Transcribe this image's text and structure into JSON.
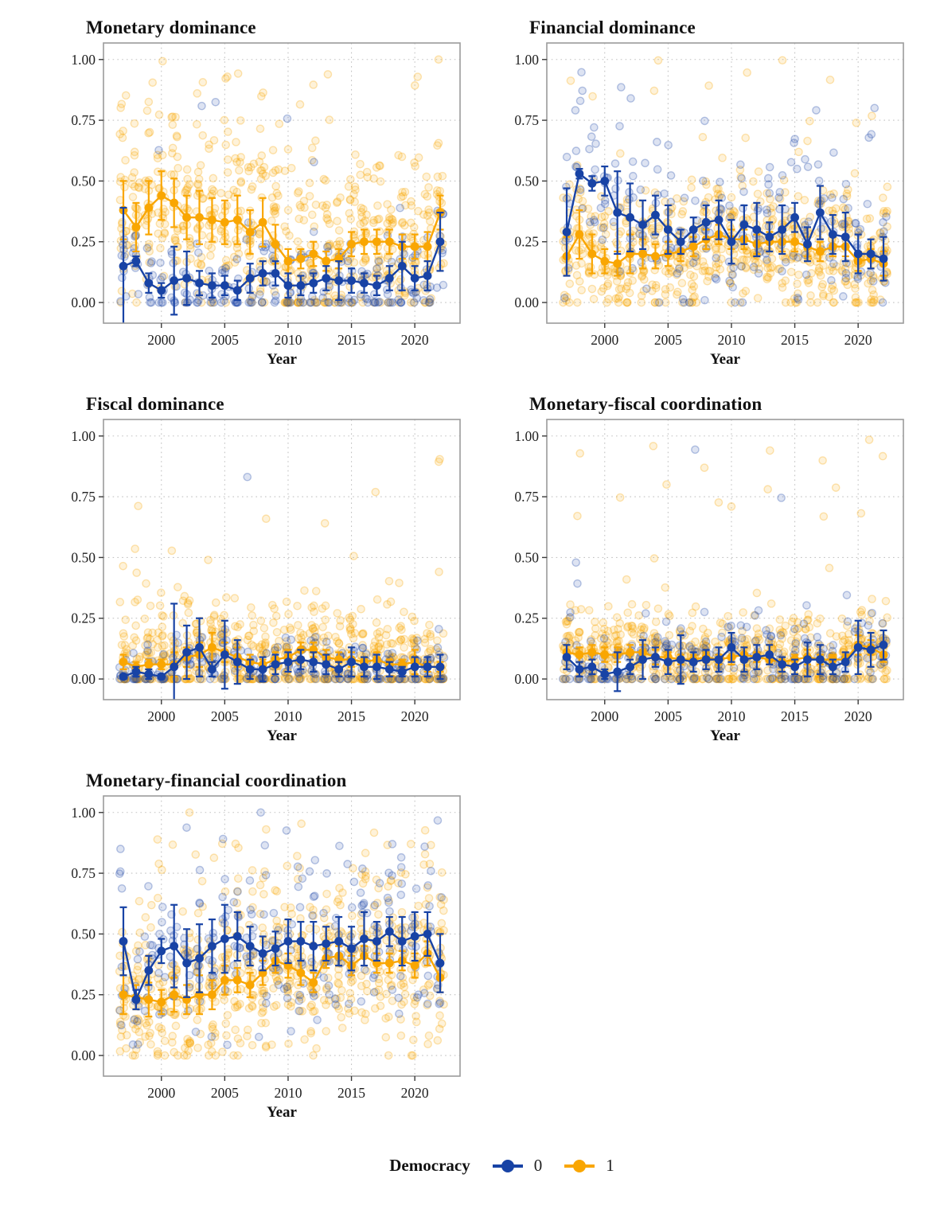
{
  "figure": {
    "legend": {
      "title": "Democracy",
      "items": [
        {
          "label": "0",
          "color": "#1843A5"
        },
        {
          "label": "1",
          "color": "#F9A602"
        }
      ]
    }
  },
  "colors": {
    "democracy0": "#1843A5",
    "democracy1": "#F9A602",
    "grid": "#C2C2C2",
    "border": "#9B9B9B",
    "tick": "#3A3A3A",
    "text": "#1f1f1f"
  },
  "axis": {
    "xlabel": "Year",
    "yticks": [
      0,
      0.25,
      0.5,
      0.75,
      1.0
    ],
    "ytick_labels": [
      "0.00",
      "0.25",
      "0.50",
      "0.75",
      "1.00"
    ],
    "xticks": [
      2000,
      2005,
      2010,
      2015,
      2020
    ],
    "ylim": [
      -0.085,
      1.068
    ]
  },
  "years": [
    1997,
    1998,
    1999,
    2000,
    2001,
    2002,
    2003,
    2004,
    2005,
    2006,
    2007,
    2008,
    2009,
    2010,
    2011,
    2012,
    2013,
    2014,
    2015,
    2016,
    2017,
    2018,
    2019,
    2020,
    2021,
    2022
  ],
  "scatter_seed": 7,
  "chart_data": [
    {
      "type": "line+scatter",
      "title": "Monetary dominance",
      "series": [
        {
          "name": "0",
          "group": "democracy0",
          "values": [
            0.15,
            0.17,
            0.08,
            0.05,
            0.09,
            0.1,
            0.08,
            0.07,
            0.07,
            0.05,
            0.1,
            0.12,
            0.12,
            0.07,
            0.07,
            0.08,
            0.1,
            0.09,
            0.09,
            0.08,
            0.07,
            0.1,
            0.15,
            0.1,
            0.11,
            0.25
          ],
          "err": [
            0.24,
            0.02,
            0.04,
            0.03,
            0.14,
            0.11,
            0.05,
            0.05,
            0.04,
            0.04,
            0.06,
            0.05,
            0.05,
            0.05,
            0.04,
            0.04,
            0.05,
            0.08,
            0.05,
            0.04,
            0.04,
            0.05,
            0.1,
            0.05,
            0.06,
            0.12
          ]
        },
        {
          "name": "1",
          "group": "democracy1",
          "values": [
            0.38,
            0.31,
            0.39,
            0.44,
            0.41,
            0.35,
            0.35,
            0.34,
            0.33,
            0.34,
            0.29,
            0.33,
            0.24,
            0.17,
            0.18,
            0.2,
            0.17,
            0.18,
            0.24,
            0.25,
            0.25,
            0.25,
            0.23,
            0.23,
            0.23,
            0.37
          ],
          "err": [
            0.12,
            0.1,
            0.11,
            0.1,
            0.1,
            0.09,
            0.11,
            0.09,
            0.09,
            0.1,
            0.09,
            0.1,
            0.08,
            0.05,
            0.04,
            0.05,
            0.04,
            0.04,
            0.05,
            0.05,
            0.05,
            0.05,
            0.05,
            0.05,
            0.06,
            0.07
          ]
        }
      ],
      "scatter": {
        "democracy0": {
          "n": 9,
          "sd": 0.1,
          "p_top": 0.03,
          "top": [
            0.3,
            0.85
          ]
        },
        "democracy1": {
          "n": 26,
          "sd": 0.2,
          "p_top": 0.02,
          "top": [
            0.75,
            0.97
          ]
        }
      }
    },
    {
      "type": "line+scatter",
      "title": "Financial dominance",
      "series": [
        {
          "name": "0",
          "group": "democracy0",
          "values": [
            0.29,
            0.53,
            0.49,
            0.5,
            0.37,
            0.35,
            0.32,
            0.36,
            0.3,
            0.25,
            0.3,
            0.33,
            0.34,
            0.25,
            0.32,
            0.3,
            0.27,
            0.3,
            0.35,
            0.24,
            0.37,
            0.28,
            0.27,
            0.2,
            0.2,
            0.18
          ],
          "err": [
            0.18,
            0.02,
            0.03,
            0.06,
            0.17,
            0.14,
            0.1,
            0.08,
            0.1,
            0.05,
            0.05,
            0.07,
            0.08,
            0.09,
            0.08,
            0.11,
            0.06,
            0.1,
            0.06,
            0.07,
            0.11,
            0.08,
            0.1,
            0.08,
            0.06,
            0.09
          ]
        },
        {
          "name": "1",
          "group": "democracy1",
          "values": [
            0.19,
            0.28,
            0.2,
            0.17,
            0.16,
            0.2,
            0.2,
            0.19,
            0.2,
            0.21,
            0.23,
            0.26,
            0.28,
            0.26,
            0.26,
            0.24,
            0.25,
            0.25,
            0.25,
            0.23,
            0.21,
            0.23,
            0.23,
            0.17,
            0.18,
            0.16
          ],
          "err": [
            0.08,
            0.1,
            0.08,
            0.05,
            0.05,
            0.08,
            0.06,
            0.05,
            0.05,
            0.04,
            0.04,
            0.04,
            0.04,
            0.04,
            0.04,
            0.04,
            0.04,
            0.04,
            0.04,
            0.04,
            0.04,
            0.04,
            0.04,
            0.04,
            0.04,
            0.05
          ]
        }
      ],
      "scatter": {
        "democracy0": {
          "n": 9,
          "sd": 0.16,
          "p_top": 0.03,
          "top": [
            0.5,
            1.0
          ]
        },
        "democracy1": {
          "n": 26,
          "sd": 0.13,
          "p_top": 0.02,
          "top": [
            0.6,
            1.0
          ]
        }
      }
    },
    {
      "type": "line+scatter",
      "title": "Fiscal dominance",
      "series": [
        {
          "name": "0",
          "group": "democracy0",
          "values": [
            0.01,
            0.03,
            0.02,
            0.01,
            0.05,
            0.11,
            0.13,
            0.04,
            0.1,
            0.07,
            0.04,
            0.04,
            0.06,
            0.07,
            0.08,
            0.07,
            0.06,
            0.04,
            0.07,
            0.05,
            0.05,
            0.04,
            0.03,
            0.05,
            0.05,
            0.05
          ],
          "err": [
            0.01,
            0.02,
            0.02,
            0.01,
            0.26,
            0.11,
            0.12,
            0.03,
            0.14,
            0.09,
            0.04,
            0.05,
            0.04,
            0.04,
            0.04,
            0.04,
            0.04,
            0.03,
            0.06,
            0.04,
            0.05,
            0.03,
            0.02,
            0.04,
            0.04,
            0.05
          ]
        },
        {
          "name": "1",
          "group": "democracy1",
          "values": [
            0.07,
            0.05,
            0.06,
            0.06,
            0.06,
            0.09,
            0.1,
            0.13,
            0.11,
            0.09,
            0.07,
            0.06,
            0.08,
            0.09,
            0.12,
            0.12,
            0.09,
            0.08,
            0.08,
            0.07,
            0.08,
            0.06,
            0.06,
            0.07,
            0.05,
            0.05
          ],
          "err": [
            0.03,
            0.02,
            0.02,
            0.02,
            0.05,
            0.04,
            0.05,
            0.06,
            0.04,
            0.04,
            0.03,
            0.02,
            0.03,
            0.03,
            0.03,
            0.03,
            0.03,
            0.03,
            0.03,
            0.02,
            0.03,
            0.02,
            0.02,
            0.05,
            0.02,
            0.02
          ]
        }
      ],
      "scatter": {
        "democracy0": {
          "n": 9,
          "sd": 0.07,
          "p_top": 0.03,
          "top": [
            0.2,
            0.9
          ]
        },
        "democracy1": {
          "n": 26,
          "sd": 0.11,
          "p_top": 0.03,
          "top": [
            0.3,
            0.93
          ]
        }
      }
    },
    {
      "type": "line+scatter",
      "title": "Monetary-fiscal coordination",
      "series": [
        {
          "name": "0",
          "group": "democracy0",
          "values": [
            0.09,
            0.04,
            0.05,
            0.02,
            0.03,
            0.05,
            0.08,
            0.09,
            0.07,
            0.08,
            0.07,
            0.08,
            0.08,
            0.13,
            0.08,
            0.09,
            0.1,
            0.06,
            0.05,
            0.08,
            0.08,
            0.05,
            0.07,
            0.13,
            0.12,
            0.14
          ],
          "err": [
            0.05,
            0.03,
            0.03,
            0.02,
            0.08,
            0.03,
            0.08,
            0.04,
            0.05,
            0.1,
            0.04,
            0.04,
            0.05,
            0.06,
            0.05,
            0.05,
            0.04,
            0.03,
            0.03,
            0.07,
            0.06,
            0.03,
            0.04,
            0.11,
            0.07,
            0.06
          ]
        },
        {
          "name": "1",
          "group": "democracy1",
          "values": [
            0.11,
            0.1,
            0.11,
            0.1,
            0.1,
            0.11,
            0.11,
            0.09,
            0.09,
            0.08,
            0.08,
            0.09,
            0.08,
            0.09,
            0.1,
            0.09,
            0.08,
            0.07,
            0.08,
            0.09,
            0.08,
            0.08,
            0.08,
            0.14,
            0.13,
            0.1
          ],
          "err": [
            0.03,
            0.03,
            0.03,
            0.03,
            0.03,
            0.03,
            0.03,
            0.03,
            0.02,
            0.02,
            0.02,
            0.02,
            0.02,
            0.03,
            0.03,
            0.02,
            0.02,
            0.02,
            0.02,
            0.03,
            0.02,
            0.02,
            0.02,
            0.04,
            0.03,
            0.03
          ]
        }
      ],
      "scatter": {
        "democracy0": {
          "n": 9,
          "sd": 0.08,
          "p_top": 0.04,
          "top": [
            0.25,
            1.0
          ]
        },
        "democracy1": {
          "n": 26,
          "sd": 0.09,
          "p_top": 0.03,
          "top": [
            0.25,
            1.0
          ]
        }
      }
    },
    {
      "type": "line+scatter",
      "title": "Monetary-financial coordination",
      "series": [
        {
          "name": "0",
          "group": "democracy0",
          "values": [
            0.47,
            0.23,
            0.35,
            0.43,
            0.45,
            0.38,
            0.4,
            0.45,
            0.48,
            0.49,
            0.45,
            0.42,
            0.44,
            0.47,
            0.47,
            0.45,
            0.46,
            0.47,
            0.44,
            0.48,
            0.47,
            0.51,
            0.47,
            0.49,
            0.5,
            0.38
          ],
          "err": [
            0.14,
            0.04,
            0.06,
            0.05,
            0.17,
            0.14,
            0.14,
            0.11,
            0.14,
            0.1,
            0.08,
            0.07,
            0.07,
            0.09,
            0.08,
            0.1,
            0.07,
            0.1,
            0.09,
            0.11,
            0.08,
            0.06,
            0.1,
            0.1,
            0.09,
            0.12
          ]
        },
        {
          "name": "1",
          "group": "democracy1",
          "values": [
            0.25,
            0.24,
            0.23,
            0.22,
            0.25,
            0.23,
            0.25,
            0.25,
            0.31,
            0.31,
            0.29,
            0.34,
            0.39,
            0.37,
            0.34,
            0.3,
            0.4,
            0.41,
            0.37,
            0.41,
            0.38,
            0.38,
            0.39,
            0.37,
            0.42,
            0.32
          ],
          "err": [
            0.08,
            0.05,
            0.07,
            0.05,
            0.07,
            0.06,
            0.08,
            0.06,
            0.06,
            0.05,
            0.05,
            0.05,
            0.05,
            0.05,
            0.05,
            0.04,
            0.04,
            0.04,
            0.04,
            0.04,
            0.04,
            0.04,
            0.04,
            0.05,
            0.05,
            0.06
          ]
        }
      ],
      "scatter": {
        "democracy0": {
          "n": 10,
          "sd": 0.16,
          "p_top": 0.05,
          "top": [
            0.6,
            1.0
          ]
        },
        "democracy1": {
          "n": 26,
          "sd": 0.16,
          "p_top": 0.04,
          "top": [
            0.6,
            1.0
          ]
        }
      }
    }
  ]
}
